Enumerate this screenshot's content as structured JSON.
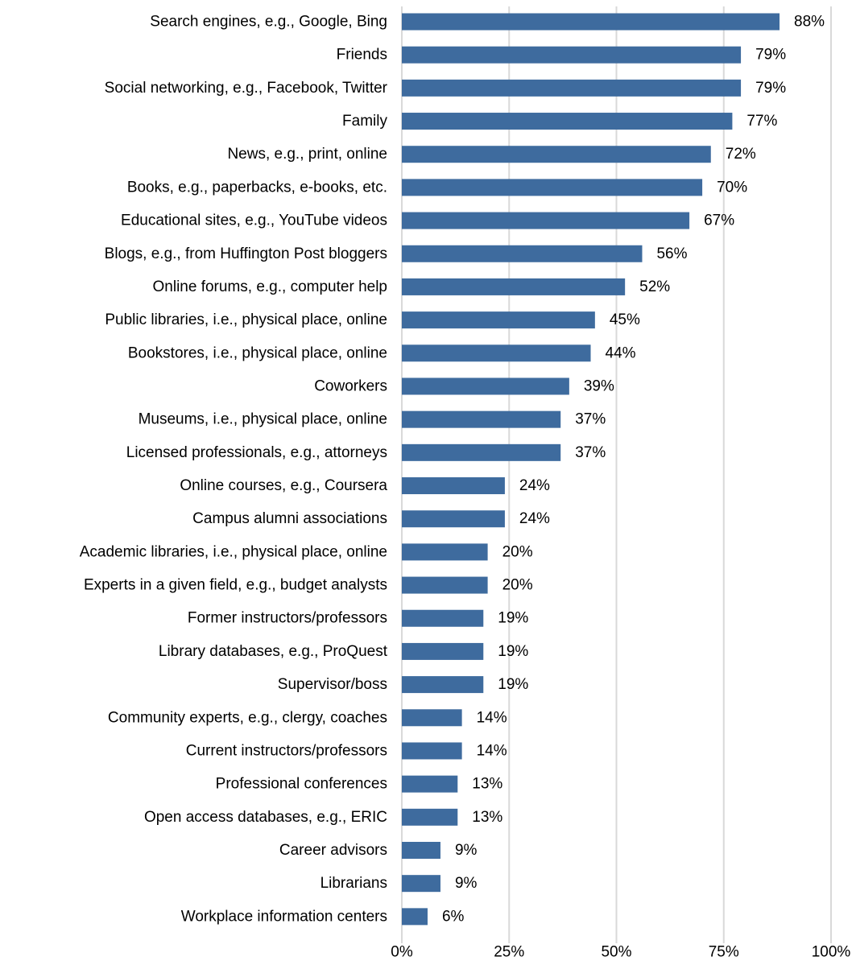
{
  "chart_data": {
    "type": "bar",
    "orientation": "horizontal",
    "title": "",
    "xlabel": "",
    "ylabel": "",
    "xlim": [
      0,
      100
    ],
    "grid": true,
    "bar_color": "#3e6b9e",
    "grid_color": "#d9d9d9",
    "text_color": "#000000",
    "x_ticks": [
      {
        "value": 0,
        "label": "0%"
      },
      {
        "value": 25,
        "label": "25%"
      },
      {
        "value": 50,
        "label": "50%"
      },
      {
        "value": 75,
        "label": "75%"
      },
      {
        "value": 100,
        "label": "100%"
      }
    ],
    "categories": [
      "Search engines, e.g., Google, Bing",
      "Friends",
      "Social networking, e.g., Facebook, Twitter",
      "Family",
      "News, e.g., print, online",
      "Books, e.g., paperbacks, e-books, etc.",
      "Educational sites, e.g., YouTube videos",
      "Blogs, e.g., from Huffington Post bloggers",
      "Online forums, e.g., computer help",
      "Public libraries, i.e., physical place, online",
      "Bookstores, i.e., physical place, online",
      "Coworkers",
      "Museums, i.e., physical place, online",
      "Licensed professionals, e.g., attorneys",
      "Online courses, e.g., Coursera",
      "Campus alumni associations",
      "Academic libraries, i.e., physical place, online",
      "Experts in a given field, e.g., budget analysts",
      "Former instructors/professors",
      "Library databases, e.g., ProQuest",
      "Supervisor/boss",
      "Community experts, e.g., clergy, coaches",
      "Current instructors/professors",
      "Professional conferences",
      "Open access databases, e.g., ERIC",
      "Career advisors",
      "Librarians",
      "Workplace information centers"
    ],
    "values": [
      88,
      79,
      79,
      77,
      72,
      70,
      67,
      56,
      52,
      45,
      44,
      39,
      37,
      37,
      24,
      24,
      20,
      20,
      19,
      19,
      19,
      14,
      14,
      13,
      13,
      9,
      9,
      6
    ],
    "value_labels": [
      "88%",
      "79%",
      "79%",
      "77%",
      "72%",
      "70%",
      "67%",
      "56%",
      "52%",
      "45%",
      "44%",
      "39%",
      "37%",
      "37%",
      "24%",
      "24%",
      "20%",
      "20%",
      "19%",
      "19%",
      "19%",
      "14%",
      "14%",
      "13%",
      "13%",
      "9%",
      "9%",
      "6%"
    ]
  }
}
